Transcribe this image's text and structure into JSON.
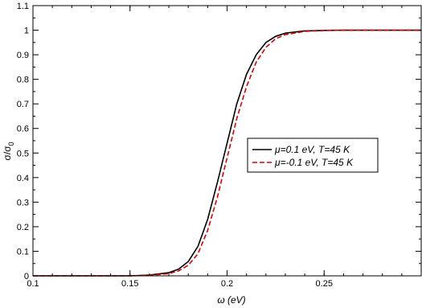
{
  "chart_data": {
    "type": "line",
    "xlabel": "ω (eV)",
    "ylabel": {
      "main": "σ/σ",
      "subscript": "0"
    },
    "xlim": [
      0.1,
      0.3
    ],
    "ylim": [
      0,
      1.1
    ],
    "x_ticks": [
      {
        "value": 0.1,
        "label": "0.1"
      },
      {
        "value": 0.15,
        "label": "0.15"
      },
      {
        "value": 0.2,
        "label": "0.2"
      },
      {
        "value": 0.25,
        "label": "0.25"
      }
    ],
    "y_ticks": [
      {
        "value": 0,
        "label": "0"
      },
      {
        "value": 0.1,
        "label": "0.1"
      },
      {
        "value": 0.2,
        "label": "0.2"
      },
      {
        "value": 0.3,
        "label": "0.3"
      },
      {
        "value": 0.4,
        "label": "0.4"
      },
      {
        "value": 0.5,
        "label": "0.5"
      },
      {
        "value": 0.6,
        "label": "0.6"
      },
      {
        "value": 0.7,
        "label": "0.7"
      },
      {
        "value": 0.8,
        "label": "0.8"
      },
      {
        "value": 0.9,
        "label": "0.9"
      },
      {
        "value": 1.0,
        "label": "1"
      },
      {
        "value": 1.1,
        "label": "1.1"
      }
    ],
    "grid": false,
    "legend_position": "right-center",
    "series": [
      {
        "name": "μ=0.1 eV, T=45 K",
        "color": "#000000",
        "dash": "solid",
        "x": [
          0.1,
          0.15,
          0.16,
          0.17,
          0.175,
          0.18,
          0.185,
          0.19,
          0.195,
          0.2,
          0.205,
          0.21,
          0.215,
          0.22,
          0.225,
          0.23,
          0.24,
          0.25,
          0.26,
          0.3
        ],
        "y": [
          0.0,
          0.0,
          0.003,
          0.013,
          0.027,
          0.058,
          0.12,
          0.23,
          0.38,
          0.54,
          0.7,
          0.82,
          0.9,
          0.95,
          0.975,
          0.988,
          0.997,
          0.999,
          1.0,
          1.0
        ]
      },
      {
        "name": "μ=-0.1 eV, T=45 K",
        "color": "#dd0000",
        "dash": "dashed",
        "x": [
          0.1,
          0.15,
          0.16,
          0.17,
          0.175,
          0.18,
          0.185,
          0.19,
          0.195,
          0.2,
          0.205,
          0.21,
          0.215,
          0.22,
          0.225,
          0.23,
          0.24,
          0.25,
          0.26,
          0.3
        ],
        "y": [
          0.0,
          0.0,
          0.002,
          0.009,
          0.02,
          0.043,
          0.09,
          0.185,
          0.32,
          0.48,
          0.64,
          0.77,
          0.87,
          0.93,
          0.965,
          0.982,
          0.995,
          0.999,
          1.0,
          1.0
        ]
      }
    ]
  }
}
